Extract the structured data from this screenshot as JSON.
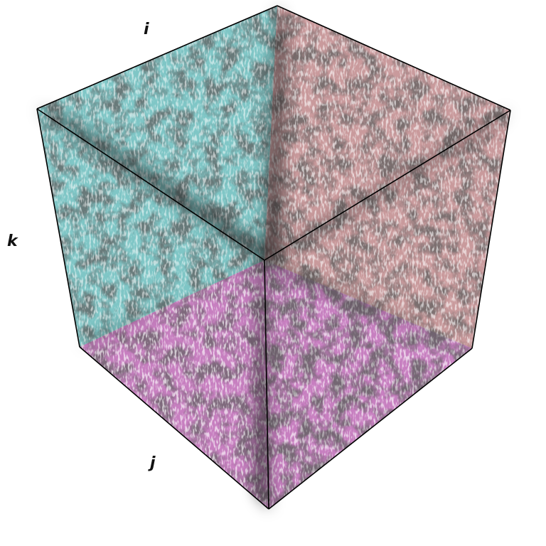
{
  "axis_labels": {
    "i": "i",
    "j": "j",
    "k": "k"
  },
  "faces": {
    "top_left": {
      "color": "#7fc6c6"
    },
    "top_right": {
      "color": "#c99a9c"
    },
    "bottom": {
      "color": "#c77fc0"
    }
  },
  "colors": {
    "background": "#ffffff",
    "edge": "#000000",
    "shadow": "#202020"
  }
}
